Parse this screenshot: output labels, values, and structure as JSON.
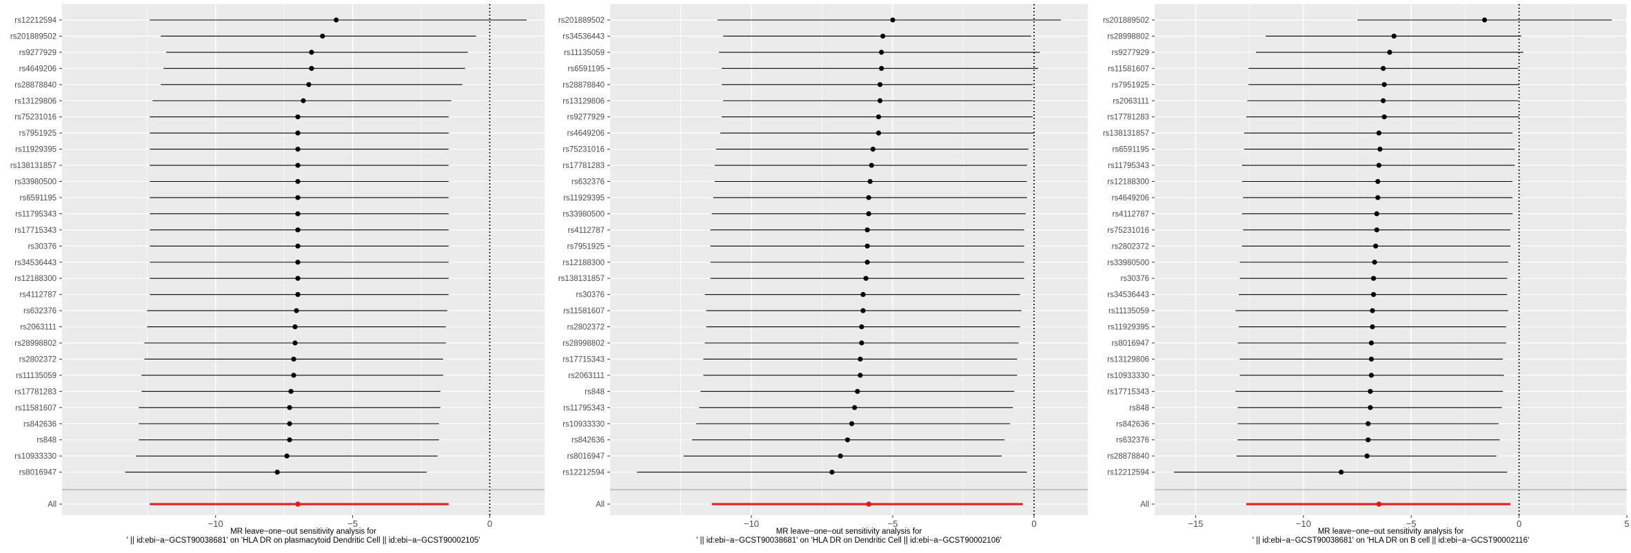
{
  "charts": [
    {
      "type": "forest",
      "labels": [
        "rs12212594",
        "rs201889502",
        "rs9277929",
        "rs4649206",
        "rs28878840",
        "rs13129806",
        "rs75231016",
        "rs7951925",
        "rs11929395",
        "rs138131857",
        "rs33980500",
        "rs6591195",
        "rs11795343",
        "rs17715343",
        "rs30376",
        "rs34536443",
        "rs12188300",
        "rs4112787",
        "rs632376",
        "rs2063111",
        "rs28998802",
        "rs2802372",
        "rs11135059",
        "rs17781283",
        "rs11581607",
        "rs842636",
        "rs848",
        "rs10933330",
        "rs8016947"
      ],
      "estimate": [
        -5.6,
        -6.1,
        -6.5,
        -6.5,
        -6.6,
        -6.8,
        -7.0,
        -7.0,
        -7.0,
        -7.0,
        -7.0,
        -7.0,
        -7.0,
        -7.0,
        -7.0,
        -7.0,
        -7.0,
        -7.0,
        -7.05,
        -7.1,
        -7.1,
        -7.15,
        -7.15,
        -7.25,
        -7.3,
        -7.3,
        -7.3,
        -7.4,
        -7.75
      ],
      "ci_low": [
        -12.4,
        -12.0,
        -11.8,
        -11.9,
        -12.0,
        -12.3,
        -12.4,
        -12.4,
        -12.4,
        -12.4,
        -12.4,
        -12.4,
        -12.4,
        -12.4,
        -12.4,
        -12.4,
        -12.4,
        -12.4,
        -12.5,
        -12.5,
        -12.6,
        -12.6,
        -12.7,
        -12.7,
        -12.8,
        -12.8,
        -12.8,
        -12.9,
        -13.3
      ],
      "ci_high": [
        1.35,
        -0.5,
        -0.8,
        -0.9,
        -1.0,
        -1.4,
        -1.5,
        -1.5,
        -1.5,
        -1.5,
        -1.5,
        -1.5,
        -1.5,
        -1.5,
        -1.5,
        -1.5,
        -1.5,
        -1.5,
        -1.55,
        -1.6,
        -1.6,
        -1.7,
        -1.7,
        -1.8,
        -1.8,
        -1.85,
        -1.85,
        -1.9,
        -2.3
      ],
      "all": {
        "label": "All",
        "estimate": -7.0,
        "ci_low": -12.4,
        "ci_high": -1.5
      },
      "xlim": [
        -15.6,
        2.0
      ],
      "xticks": [
        {
          "v": -10,
          "t": "−10"
        },
        {
          "v": -5,
          "t": "−5"
        },
        {
          "v": 0,
          "t": "0"
        }
      ],
      "title_line1": "MR leave−one−out sensitivity analysis for",
      "title_line2": "' || id:ebi−a−GCST90038681' on 'HLA DR on plasmacytoid Dendritic Cell || id:ebi−a−GCST90002105'"
    },
    {
      "type": "forest",
      "labels": [
        "rs201889502",
        "rs34536443",
        "rs11135059",
        "rs6591195",
        "rs28878840",
        "rs13129806",
        "rs9277929",
        "rs4649206",
        "rs75231016",
        "rs17781283",
        "rs632376",
        "rs11929395",
        "rs33980500",
        "rs4112787",
        "rs7951925",
        "rs12188300",
        "rs138131857",
        "rs30376",
        "rs11581607",
        "rs2802372",
        "rs28998802",
        "rs17715343",
        "rs2063111",
        "rs848",
        "rs11795343",
        "rs10933330",
        "rs842636",
        "rs8016947",
        "rs12212594"
      ],
      "estimate": [
        -5.0,
        -5.35,
        -5.4,
        -5.4,
        -5.45,
        -5.45,
        -5.5,
        -5.5,
        -5.7,
        -5.75,
        -5.8,
        -5.85,
        -5.85,
        -5.9,
        -5.9,
        -5.9,
        -5.95,
        -6.05,
        -6.05,
        -6.1,
        -6.1,
        -6.15,
        -6.15,
        -6.25,
        -6.35,
        -6.45,
        -6.6,
        -6.85,
        -7.15
      ],
      "ci_low": [
        -11.2,
        -11.0,
        -11.15,
        -11.05,
        -11.05,
        -11.0,
        -11.05,
        -11.1,
        -11.25,
        -11.3,
        -11.3,
        -11.35,
        -11.4,
        -11.45,
        -11.45,
        -11.45,
        -11.45,
        -11.65,
        -11.6,
        -11.6,
        -11.65,
        -11.7,
        -11.7,
        -11.8,
        -11.85,
        -11.95,
        -12.1,
        -12.4,
        -14.05
      ],
      "ci_high": [
        0.95,
        -0.1,
        0.2,
        0.15,
        -0.05,
        -0.05,
        -0.05,
        0.0,
        -0.2,
        -0.25,
        -0.25,
        -0.25,
        -0.3,
        -0.35,
        -0.35,
        -0.35,
        -0.35,
        -0.5,
        -0.45,
        -0.5,
        -0.55,
        -0.6,
        -0.6,
        -0.7,
        -0.75,
        -0.85,
        -1.05,
        -1.15,
        -0.25
      ],
      "all": {
        "label": "All",
        "estimate": -5.85,
        "ci_low": -11.4,
        "ci_high": -0.4
      },
      "xlim": [
        -15.0,
        1.9
      ],
      "xticks": [
        {
          "v": -10,
          "t": "−10"
        },
        {
          "v": -5,
          "t": "−5"
        },
        {
          "v": 0,
          "t": "0"
        }
      ],
      "title_line1": "MR leave−one−out sensitivity analysis for",
      "title_line2": "' || id:ebi−a−GCST90038681' on 'HLA DR on Dendritic Cell || id:ebi−a−GCST90002106'"
    },
    {
      "type": "forest",
      "labels": [
        "rs201889502",
        "rs28998802",
        "rs9277929",
        "rs11581607",
        "rs7951925",
        "rs2063111",
        "rs17781283",
        "rs138131857",
        "rs6591195",
        "rs11795343",
        "rs12188300",
        "rs4649206",
        "rs4112787",
        "rs75231016",
        "rs2802372",
        "rs33980500",
        "rs30376",
        "rs34536443",
        "rs11135059",
        "rs11929395",
        "rs8016947",
        "rs13129806",
        "rs10933330",
        "rs17715343",
        "rs848",
        "rs842636",
        "rs632376",
        "rs28878840",
        "rs12212594"
      ],
      "estimate": [
        -1.6,
        -5.8,
        -6.0,
        -6.3,
        -6.25,
        -6.3,
        -6.25,
        -6.5,
        -6.45,
        -6.5,
        -6.55,
        -6.55,
        -6.6,
        -6.6,
        -6.65,
        -6.7,
        -6.75,
        -6.75,
        -6.8,
        -6.8,
        -6.85,
        -6.85,
        -6.85,
        -6.9,
        -6.9,
        -7.0,
        -7.0,
        -7.05,
        -8.25
      ],
      "ci_low": [
        -7.5,
        -11.75,
        -12.2,
        -12.55,
        -12.55,
        -12.6,
        -12.65,
        -12.75,
        -12.75,
        -12.85,
        -12.85,
        -12.8,
        -12.85,
        -12.8,
        -12.85,
        -12.95,
        -12.95,
        -13.0,
        -13.15,
        -13.0,
        -13.05,
        -12.95,
        -12.95,
        -13.15,
        -13.05,
        -13.05,
        -13.05,
        -13.1,
        -16.0
      ],
      "ci_high": [
        4.3,
        0.1,
        0.2,
        -0.05,
        0.0,
        -0.05,
        0.0,
        -0.3,
        -0.2,
        -0.2,
        -0.3,
        -0.3,
        -0.3,
        -0.4,
        -0.4,
        -0.5,
        -0.55,
        -0.55,
        -0.5,
        -0.6,
        -0.6,
        -0.75,
        -0.7,
        -0.75,
        -0.8,
        -0.95,
        -0.9,
        -1.05,
        -0.55
      ],
      "all": {
        "label": "All",
        "estimate": -6.5,
        "ci_low": -12.65,
        "ci_high": -0.4
      },
      "xlim": [
        -16.9,
        5.0
      ],
      "xticks": [
        {
          "v": -15,
          "t": "−15"
        },
        {
          "v": -10,
          "t": "−10"
        },
        {
          "v": -5,
          "t": "−5"
        },
        {
          "v": 0,
          "t": "0"
        },
        {
          "v": 5,
          "t": "5"
        }
      ],
      "title_line1": "MR leave−one−out sensitivity analysis for",
      "title_line2": "' || id:ebi−a−GCST90038681' on 'HLA DR on B cell || id:ebi−a−GCST90002116'"
    }
  ]
}
